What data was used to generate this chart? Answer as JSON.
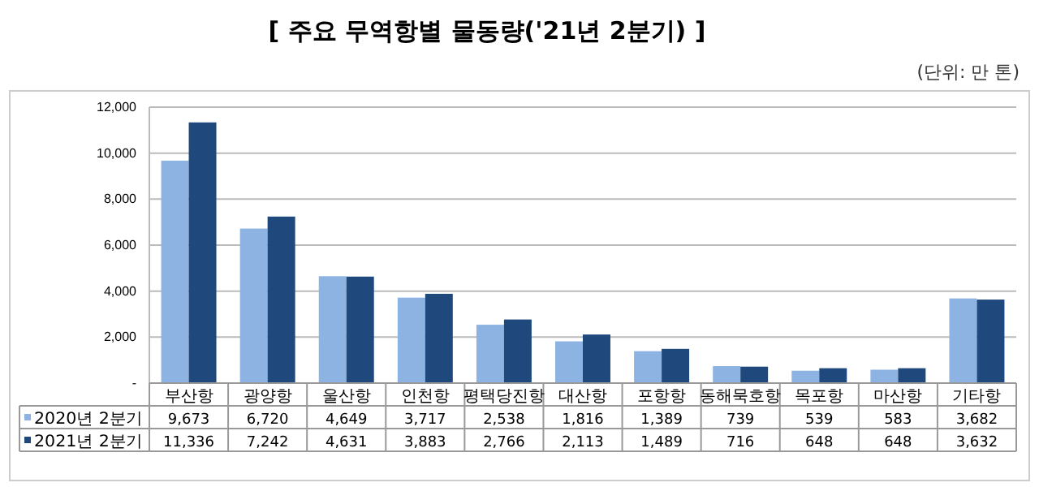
{
  "chart_data": {
    "type": "bar",
    "title": "[ 주요 무역항별 물동량('21년 2분기) ]",
    "subtitle": "(단위: 만 톤)",
    "categories": [
      "부산항",
      "광양항",
      "울산항",
      "인천항",
      "평택당진항",
      "대산항",
      "포항항",
      "동해묵호항",
      "목포항",
      "마산항",
      "기타항"
    ],
    "series": [
      {
        "name": "2020년 2분기",
        "color": "#8db3e2",
        "values": [
          9673,
          6720,
          4649,
          3717,
          2538,
          1816,
          1389,
          739,
          539,
          583,
          3682
        ],
        "value_labels": [
          "9,673",
          "6,720",
          "4,649",
          "3,717",
          "2,538",
          "1,816",
          "1,389",
          "739",
          "539",
          "583",
          "3,682"
        ]
      },
      {
        "name": "2021년 2분기",
        "color": "#1f497d",
        "values": [
          11336,
          7242,
          4631,
          3883,
          2766,
          2113,
          1489,
          716,
          648,
          648,
          3632
        ],
        "value_labels": [
          "11,336",
          "7,242",
          "4,631",
          "3,883",
          "2,766",
          "2,113",
          "1,489",
          "716",
          "648",
          "648",
          "3,632"
        ]
      }
    ],
    "ylim": [
      0,
      12000
    ],
    "yticks": [
      {
        "value": 0,
        "label": "-"
      },
      {
        "value": 2000,
        "label": "2,000"
      },
      {
        "value": 4000,
        "label": "4,000"
      },
      {
        "value": 6000,
        "label": "6,000"
      },
      {
        "value": 8000,
        "label": "8,000"
      },
      {
        "value": 10000,
        "label": "10,000"
      },
      {
        "value": 12000,
        "label": "12,000"
      }
    ],
    "grid": "y",
    "legend": "bottom"
  }
}
